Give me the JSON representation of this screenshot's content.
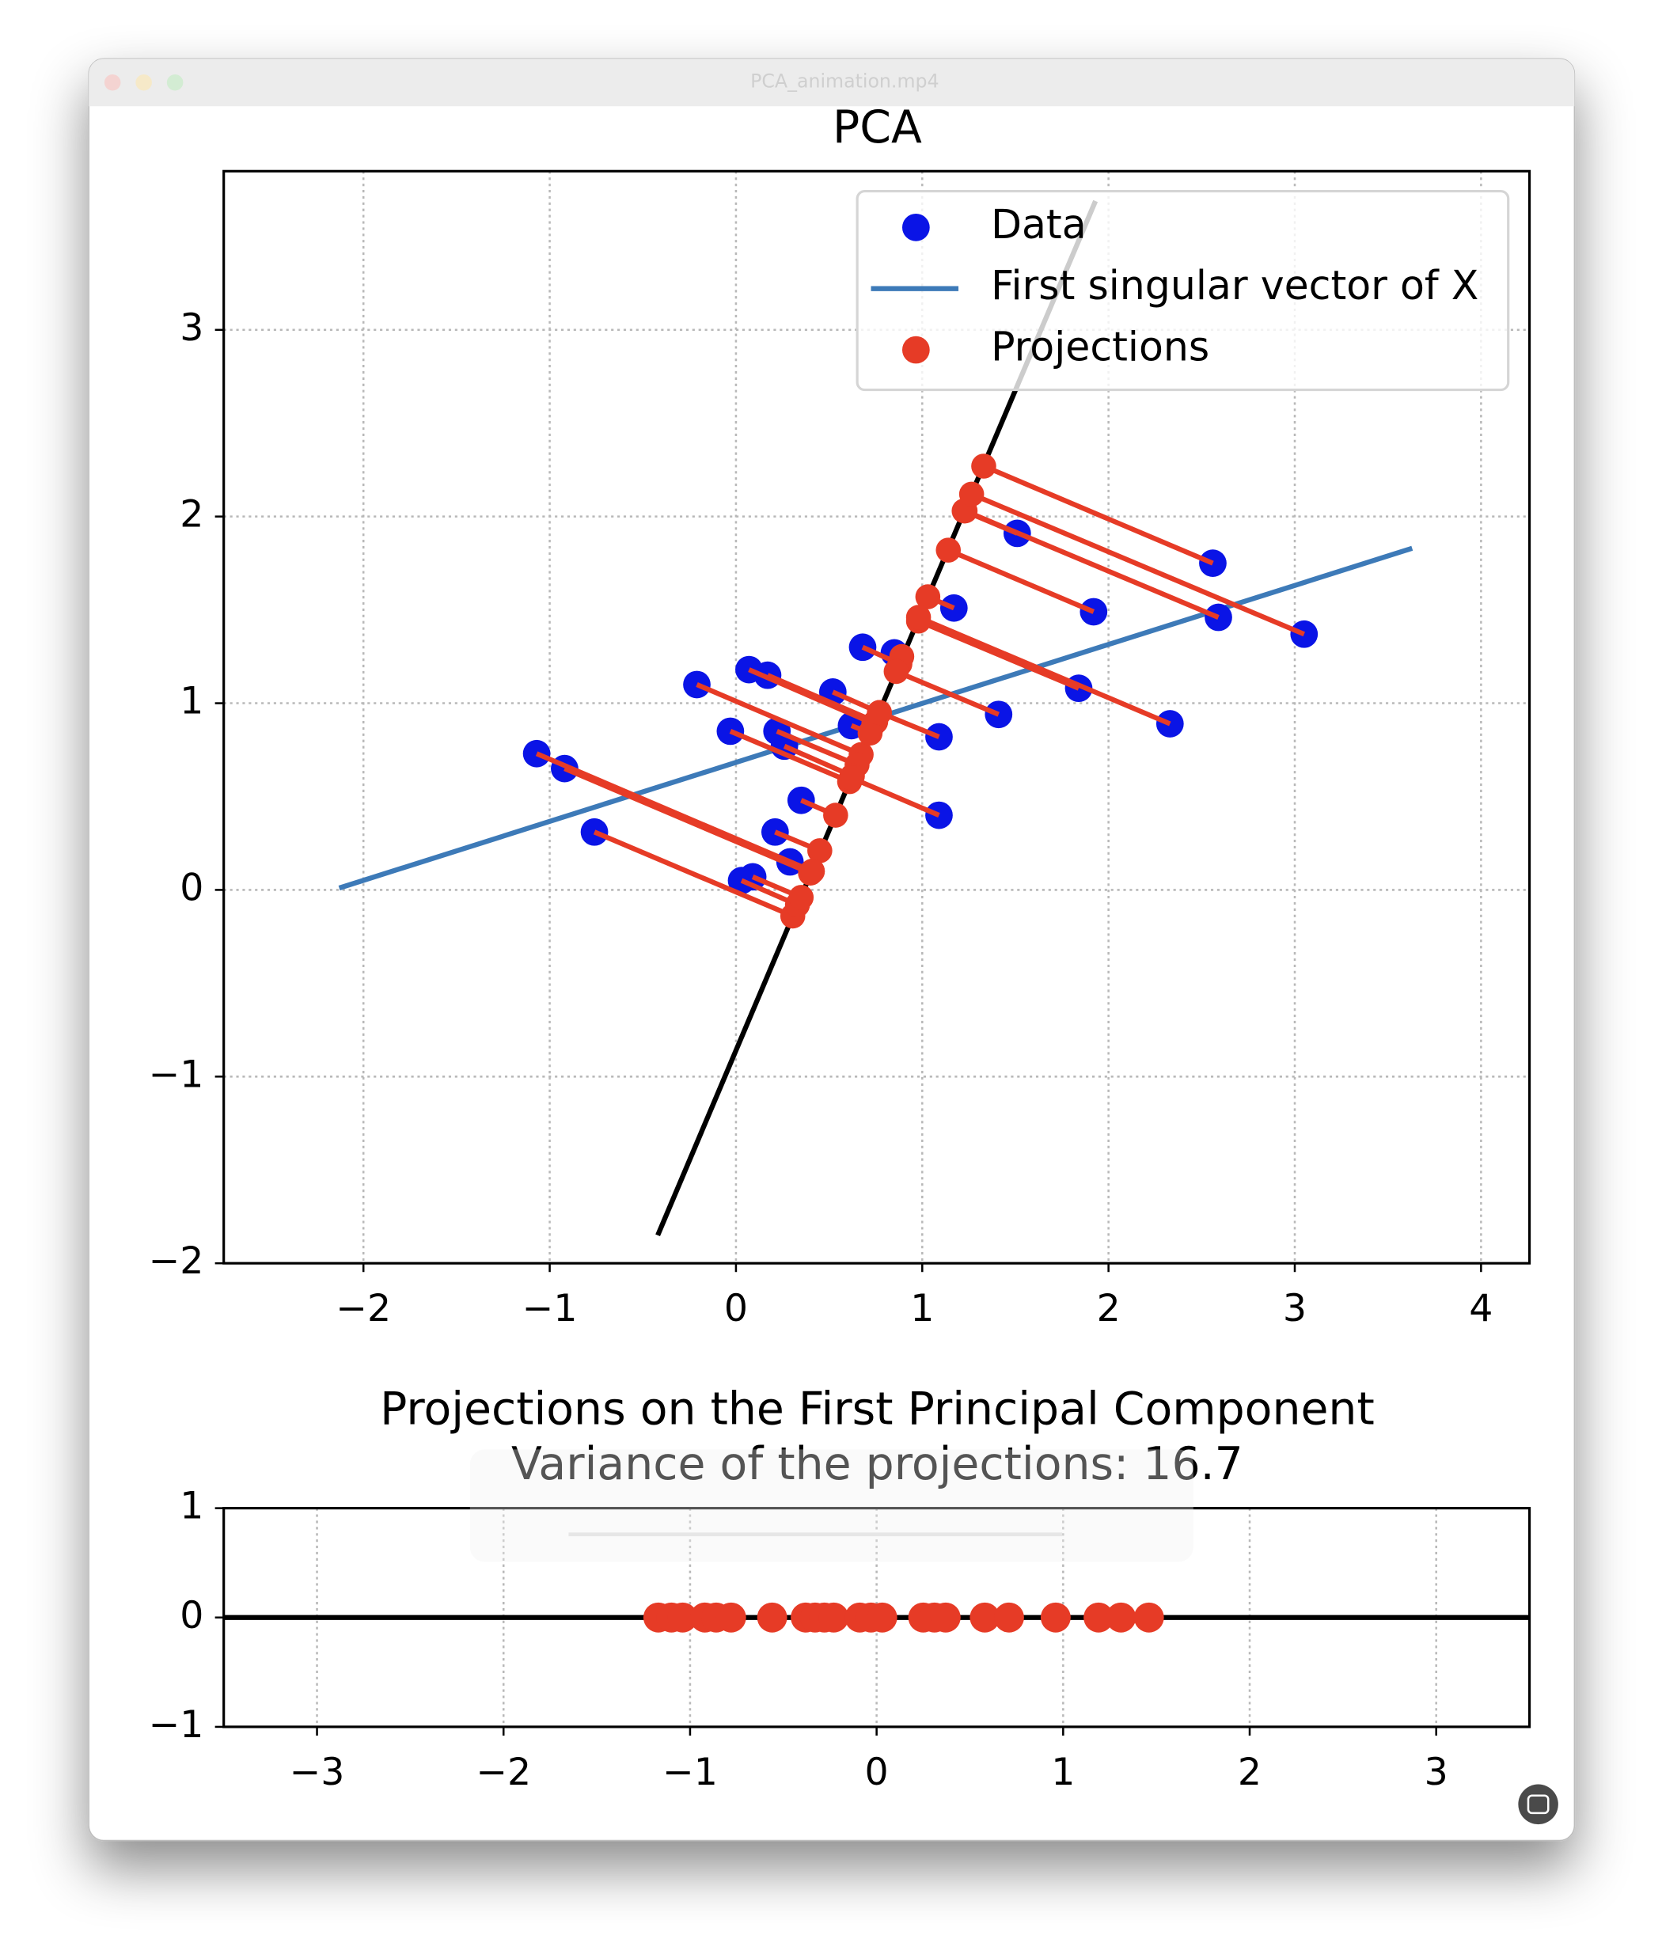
{
  "window": {
    "title": "PCA_animation.mp4"
  },
  "chart_data": [
    {
      "type": "scatter",
      "title": "PCA",
      "xlim": [
        -2.75,
        4.26
      ],
      "ylim": [
        -2,
        3.85
      ],
      "xticks": [
        {
          "value": -2,
          "label": "−2"
        },
        {
          "value": -1,
          "label": "−1"
        },
        0,
        1,
        2,
        3,
        4
      ],
      "yticks": [
        {
          "value": -2,
          "label": "−2"
        },
        {
          "value": -1,
          "label": "−1"
        },
        0,
        1,
        2,
        3
      ],
      "grid": true,
      "legend": "upper right",
      "series": [
        {
          "name": "Data",
          "type": "scatter",
          "color": "#0a14e6",
          "x": [
            -1.07,
            -0.92,
            -0.76,
            -0.21,
            -0.03,
            0.07,
            0.17,
            0.22,
            0.26,
            0.03,
            0.09,
            0.21,
            0.29,
            0.35,
            0.52,
            0.62,
            0.68,
            0.85,
            1.09,
            1.09,
            1.17,
            1.41,
            1.51,
            1.84,
            1.92,
            2.33,
            2.56,
            2.59,
            3.05
          ],
          "y": [
            0.73,
            0.65,
            0.31,
            1.1,
            0.85,
            1.18,
            1.15,
            0.85,
            0.77,
            0.05,
            0.07,
            0.31,
            0.15,
            0.48,
            1.06,
            0.88,
            1.3,
            1.27,
            0.82,
            0.4,
            1.51,
            0.94,
            1.91,
            1.08,
            1.49,
            0.89,
            1.75,
            1.46,
            1.37
          ]
        },
        {
          "name": "First singular vector of X",
          "type": "line",
          "color": "#3d7ab8",
          "x": [
            -2.13,
            3.63
          ],
          "y": [
            0.01,
            1.83
          ]
        },
        {
          "name": "Projections",
          "type": "scatter",
          "color": "#e63b26",
          "x": [
            0.41,
            0.4,
            0.305,
            0.672,
            0.61,
            0.74,
            0.75,
            0.65,
            0.625,
            0.33,
            0.35,
            0.45,
            0.41,
            0.535,
            0.77,
            0.72,
            0.88,
            0.89,
            0.77,
            0.62,
            1.03,
            0.86,
            1.225,
            0.98,
            1.14,
            0.98,
            1.33,
            1.23,
            1.265
          ],
          "y": [
            0.1,
            0.09,
            -0.14,
            0.725,
            0.58,
            0.89,
            0.9,
            0.67,
            0.61,
            -0.08,
            -0.04,
            0.21,
            0.1,
            0.4,
            0.95,
            0.84,
            1.21,
            1.25,
            0.95,
            0.6,
            1.57,
            1.17,
            2.03,
            1.44,
            1.82,
            1.46,
            2.27,
            2.03,
            2.12
          ]
        }
      ],
      "lines": [
        {
          "color": "#000000",
          "x": [
            -0.42,
            1.93
          ],
          "y": [
            -1.85,
            3.69
          ]
        }
      ]
    },
    {
      "type": "scatter",
      "title": "Projections on the First Principal Component",
      "subtitle": "Variance of the projections: 16.7",
      "xlim": [
        -3.5,
        3.5
      ],
      "ylim": [
        -1,
        1
      ],
      "xticks": [
        {
          "value": -3,
          "label": "−3"
        },
        {
          "value": -2,
          "label": "−2"
        },
        {
          "value": -1,
          "label": "−1"
        },
        0,
        1,
        2,
        3
      ],
      "yticks": [
        {
          "value": -1,
          "label": "−1"
        },
        0,
        1
      ],
      "grid": true,
      "hline": 0,
      "series": [
        {
          "type": "scatter",
          "color": "#e63b26",
          "x": [
            -1.17,
            -1.1,
            -1.04,
            -0.92,
            -0.86,
            -0.78,
            -0.56,
            -0.38,
            -0.33,
            -0.28,
            -0.23,
            -0.09,
            -0.03,
            0.03,
            0.25,
            0.31,
            0.37,
            0.58,
            0.71,
            0.96,
            1.19,
            1.31,
            1.46
          ],
          "y": [
            0,
            0,
            0,
            0,
            0,
            0,
            0,
            0,
            0,
            0,
            0,
            0,
            0,
            0,
            0,
            0,
            0,
            0,
            0,
            0,
            0,
            0,
            0
          ]
        }
      ]
    }
  ]
}
